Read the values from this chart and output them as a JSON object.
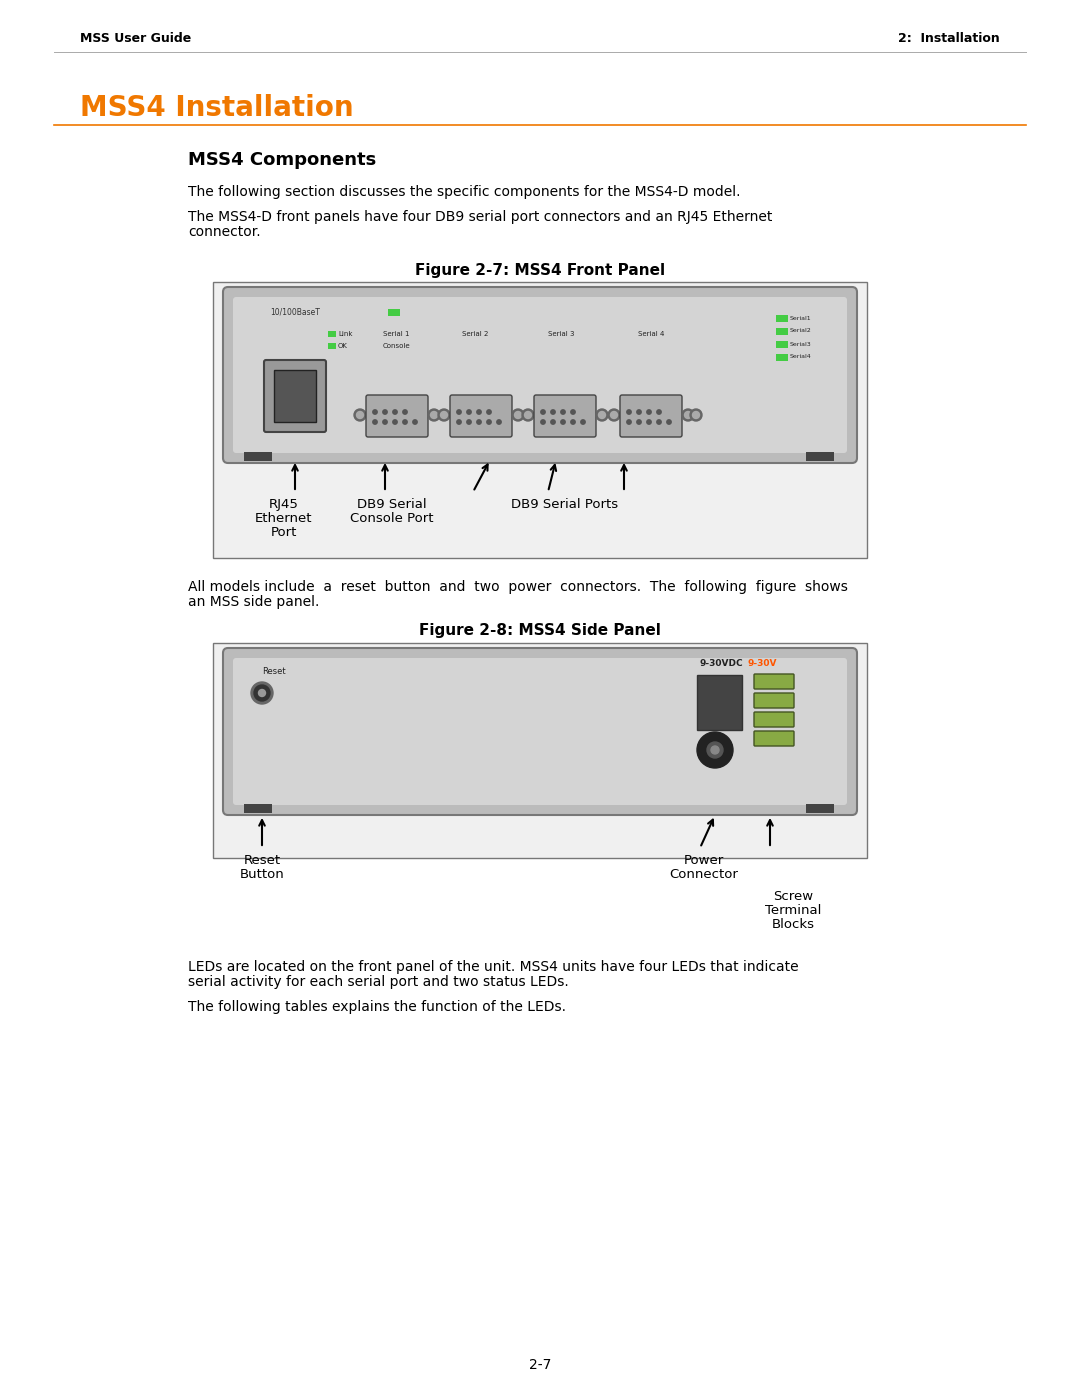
{
  "page_bg": "#ffffff",
  "header_left": "MSS User Guide",
  "header_right": "2:  Installation",
  "header_font_size": 9,
  "section_title": "MSS4 Installation",
  "section_title_color": "#f07800",
  "section_title_font_size": 20,
  "subsection_title": "MSS4 Components",
  "subsection_font_size": 13,
  "body_font_size": 10,
  "para1": "The following section discusses the specific components for the MSS4-D model.",
  "para2_line1": "The MSS4-D front panels have four DB9 serial port connectors and an RJ45 Ethernet",
  "para2_line2": "connector.",
  "fig1_caption": "Figure 2-7: MSS4 Front Panel",
  "fig1_caption_font_size": 11,
  "para3_line1": "All models include  a  reset  button  and  two  power  connectors.  The  following  figure  shows",
  "para3_line2": "an MSS side panel.",
  "fig2_caption": "Figure 2-8: MSS4 Side Panel",
  "fig2_caption_font_size": 11,
  "para4_line1": "LEDs are located on the front panel of the unit. MSS4 units have four LEDs that indicate",
  "para4_line2": "serial activity for each serial port and two status LEDs.",
  "para5": "The following tables explains the function of the LEDs.",
  "page_number": "2-7",
  "orange_color": "#f07800",
  "black": "#000000",
  "dark_gray": "#555555",
  "mid_gray": "#888888",
  "light_gray": "#cccccc",
  "lighter_gray": "#d8d8d8",
  "green_led": "#44cc44",
  "body_color": "#000000"
}
